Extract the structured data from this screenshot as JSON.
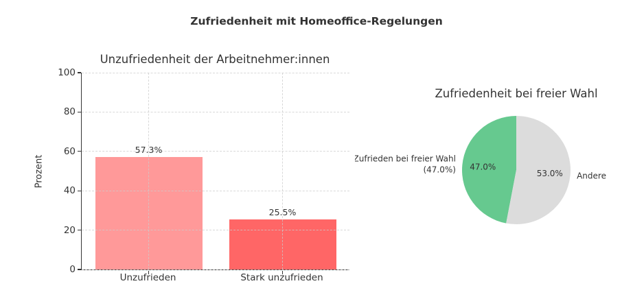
{
  "main_title": "Zufriedenheit mit Homeoffice-Regelungen",
  "colors": {
    "text": "#333333",
    "grid": "#cccccc",
    "background": "#ffffff"
  },
  "chart_data": [
    {
      "type": "bar",
      "title": "Unzufriedenheit der Arbeitnehmer:innen",
      "ylabel": "Prozent",
      "xlabel": "",
      "categories": [
        "Unzufrieden",
        "Stark unzufrieden"
      ],
      "values": [
        57.3,
        25.5
      ],
      "bar_labels": [
        "57.3%",
        "25.5%"
      ],
      "bar_colors": [
        "#ff9999",
        "#ff6666"
      ],
      "ylim": [
        0,
        100
      ],
      "yticks": [
        0,
        20,
        40,
        60,
        80,
        100
      ],
      "grid": "dashed, both axes, drawn above bars",
      "legend": "none"
    },
    {
      "type": "pie",
      "title": "Zufriedenheit bei freier Wahl",
      "start_angle": 90,
      "counterclockwise": true,
      "slices": [
        {
          "value": 47.0,
          "pct_label": "47.0%",
          "label_lines": [
            "Zufrieden bei freier Wahl",
            "(47.0%)"
          ],
          "color": "#66c98f"
        },
        {
          "value": 53.0,
          "pct_label": "53.0%",
          "label_lines": [
            "Andere"
          ],
          "color": "#dcdcdc"
        }
      ],
      "legend": "none"
    }
  ]
}
